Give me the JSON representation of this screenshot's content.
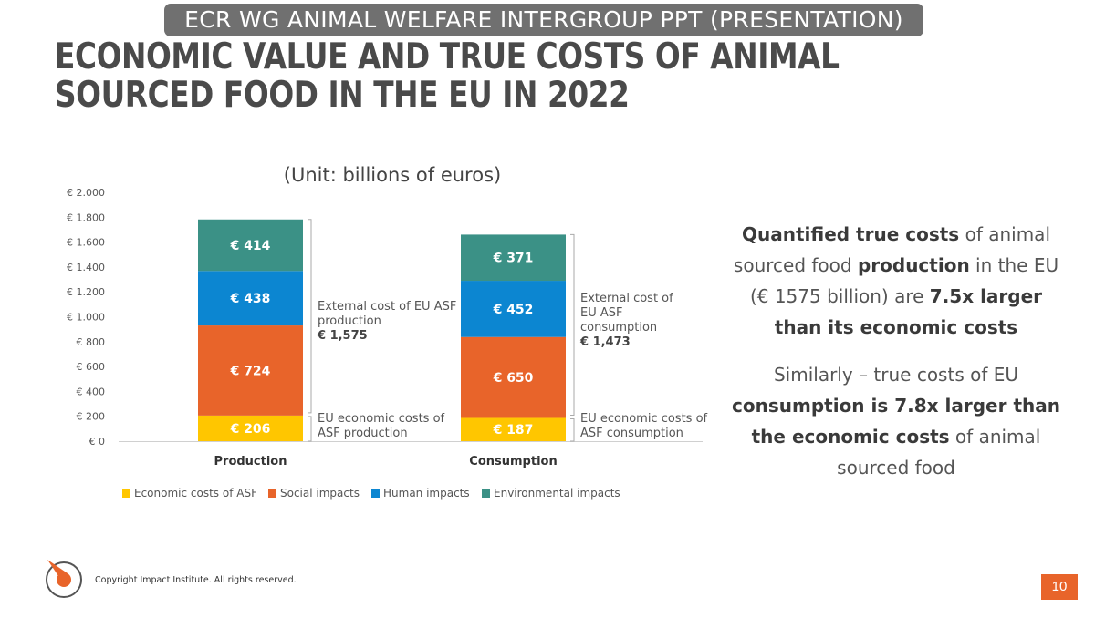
{
  "header": {
    "top_label": "ECR WG ANIMAL WELFARE INTERGROUP PPT (PRESENTATION)",
    "title": "ECONOMIC VALUE AND TRUE COSTS OF ANIMAL SOURCED FOOD IN THE EU IN 2022"
  },
  "chart_data": {
    "type": "bar",
    "stacked": true,
    "subtitle": "(Unit: billions of euros)",
    "categories": [
      "Production",
      "Consumption"
    ],
    "ylim": [
      0,
      2000
    ],
    "y_ticks": [
      0,
      200,
      400,
      600,
      800,
      1000,
      1200,
      1400,
      1600,
      1800,
      2000
    ],
    "y_tick_labels": [
      "€ 0",
      "€ 200",
      "€ 400",
      "€ 600",
      "€ 800",
      "€ 1.000",
      "€ 1.200",
      "€ 1.400",
      "€ 1.600",
      "€ 1.800",
      "€ 2.000"
    ],
    "series": [
      {
        "name": "Economic costs of ASF",
        "color": "#FFC600",
        "values": [
          206,
          187
        ],
        "labels": [
          "€ 206",
          "€ 187"
        ]
      },
      {
        "name": "Social impacts",
        "color": "#E8642A",
        "values": [
          724,
          650
        ],
        "labels": [
          "€ 724",
          "€ 650"
        ]
      },
      {
        "name": "Human impacts",
        "color": "#0C86D1",
        "values": [
          438,
          452
        ],
        "labels": [
          "€ 438",
          "€ 452"
        ]
      },
      {
        "name": "Environmental impacts",
        "color": "#3B9186",
        "values": [
          414,
          371
        ],
        "labels": [
          "€ 414",
          "€ 371"
        ]
      }
    ],
    "annotations": [
      {
        "bar": "Production",
        "group": "external",
        "lines": [
          "External cost of EU ASF",
          "production"
        ],
        "value": "€ 1,575"
      },
      {
        "bar": "Production",
        "group": "economic",
        "lines": [
          "EU economic costs of",
          "ASF production"
        ]
      },
      {
        "bar": "Consumption",
        "group": "external",
        "lines": [
          "External cost of",
          "EU ASF",
          "consumption"
        ],
        "value": "€ 1,473"
      },
      {
        "bar": "Consumption",
        "group": "economic",
        "lines": [
          "EU economic costs of",
          "ASF consumption"
        ]
      }
    ]
  },
  "summary": {
    "p1_bold1": "Quantified true costs",
    "p1_text1": " of animal sourced food ",
    "p1_bold2": "production",
    "p1_text2": " in the EU (€ 1575 billion) are ",
    "p1_bold3": "7.5x larger than its economic costs",
    "p2_text1": "Similarly – true costs of EU ",
    "p2_bold1": "consumption is 7.8x larger than the economic costs",
    "p2_text2": " of animal sourced food"
  },
  "footer": {
    "copyright": "Copyright Impact Institute. All rights reserved.",
    "page_number": "10"
  }
}
